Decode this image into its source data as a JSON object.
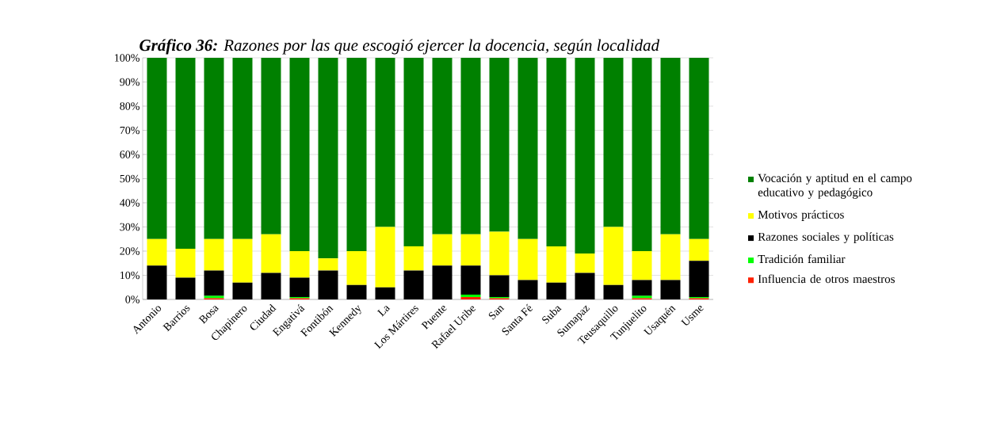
{
  "chart_data": {
    "type": "bar",
    "stacked": true,
    "title": "**Gráfico 36:** Razones por las que escogió ejercer la docencia, según localidad",
    "categories": [
      "Antonio",
      "Barrios",
      "Bosa",
      "Chapinero",
      "Ciudad",
      "Engativá",
      "Fontibón",
      "Kennedy",
      "La",
      "Los Mártires",
      "Puente",
      "Rafael Uribe",
      "San",
      "Santa Fé",
      "Suba",
      "Sumapaz",
      "Teusaquillo",
      "Tunjuelito",
      "Usaquén",
      "Usme"
    ],
    "series": [
      {
        "name": "Influencia de otros maestros",
        "color": "#ff2000",
        "values": [
          0,
          0,
          0.5,
          0,
          0,
          0.5,
          0,
          0,
          0,
          0,
          0,
          1,
          0.5,
          0,
          0,
          0,
          0,
          0.5,
          0,
          0.5
        ]
      },
      {
        "name": "Tradición familiar",
        "color": "#00ff00",
        "values": [
          0,
          0,
          1,
          0,
          0,
          0.5,
          0,
          0,
          0,
          0,
          0,
          1,
          0.5,
          0,
          0,
          0,
          0,
          1,
          0,
          0.5
        ]
      },
      {
        "name": "Razones sociales y políticas",
        "color": "#000000",
        "values": [
          14,
          9,
          10.5,
          7,
          11,
          8,
          12,
          6,
          5,
          12,
          14,
          12,
          9,
          8,
          7,
          11,
          6,
          6.5,
          8,
          15
        ]
      },
      {
        "name": "Motivos prácticos",
        "color": "#ffff00",
        "values": [
          11,
          12,
          13,
          18,
          16,
          11,
          5,
          14,
          25,
          10,
          13,
          13,
          18,
          17,
          15,
          8,
          24,
          12,
          19,
          9
        ]
      },
      {
        "name": "Vocación y aptitud en el campo educativo y pedagógico",
        "color": "#008000",
        "values": [
          75,
          79,
          75,
          75,
          73,
          80,
          83,
          80,
          70,
          78,
          73,
          73,
          72,
          75,
          78,
          81,
          70,
          80,
          73,
          75
        ]
      }
    ],
    "ylim": [
      0,
      100
    ],
    "yticks": [
      {
        "value": 0,
        "label": "0%"
      },
      {
        "value": 10,
        "label": "10%"
      },
      {
        "value": 20,
        "label": "20%"
      },
      {
        "value": 30,
        "label": "30%"
      },
      {
        "value": 40,
        "label": "40%"
      },
      {
        "value": 50,
        "label": "50%"
      },
      {
        "value": 60,
        "label": "60%"
      },
      {
        "value": 70,
        "label": "70%"
      },
      {
        "value": 80,
        "label": "80%"
      },
      {
        "value": 90,
        "label": "90%"
      },
      {
        "value": 100,
        "label": "100%"
      }
    ],
    "grid": "y",
    "legend": "right"
  }
}
